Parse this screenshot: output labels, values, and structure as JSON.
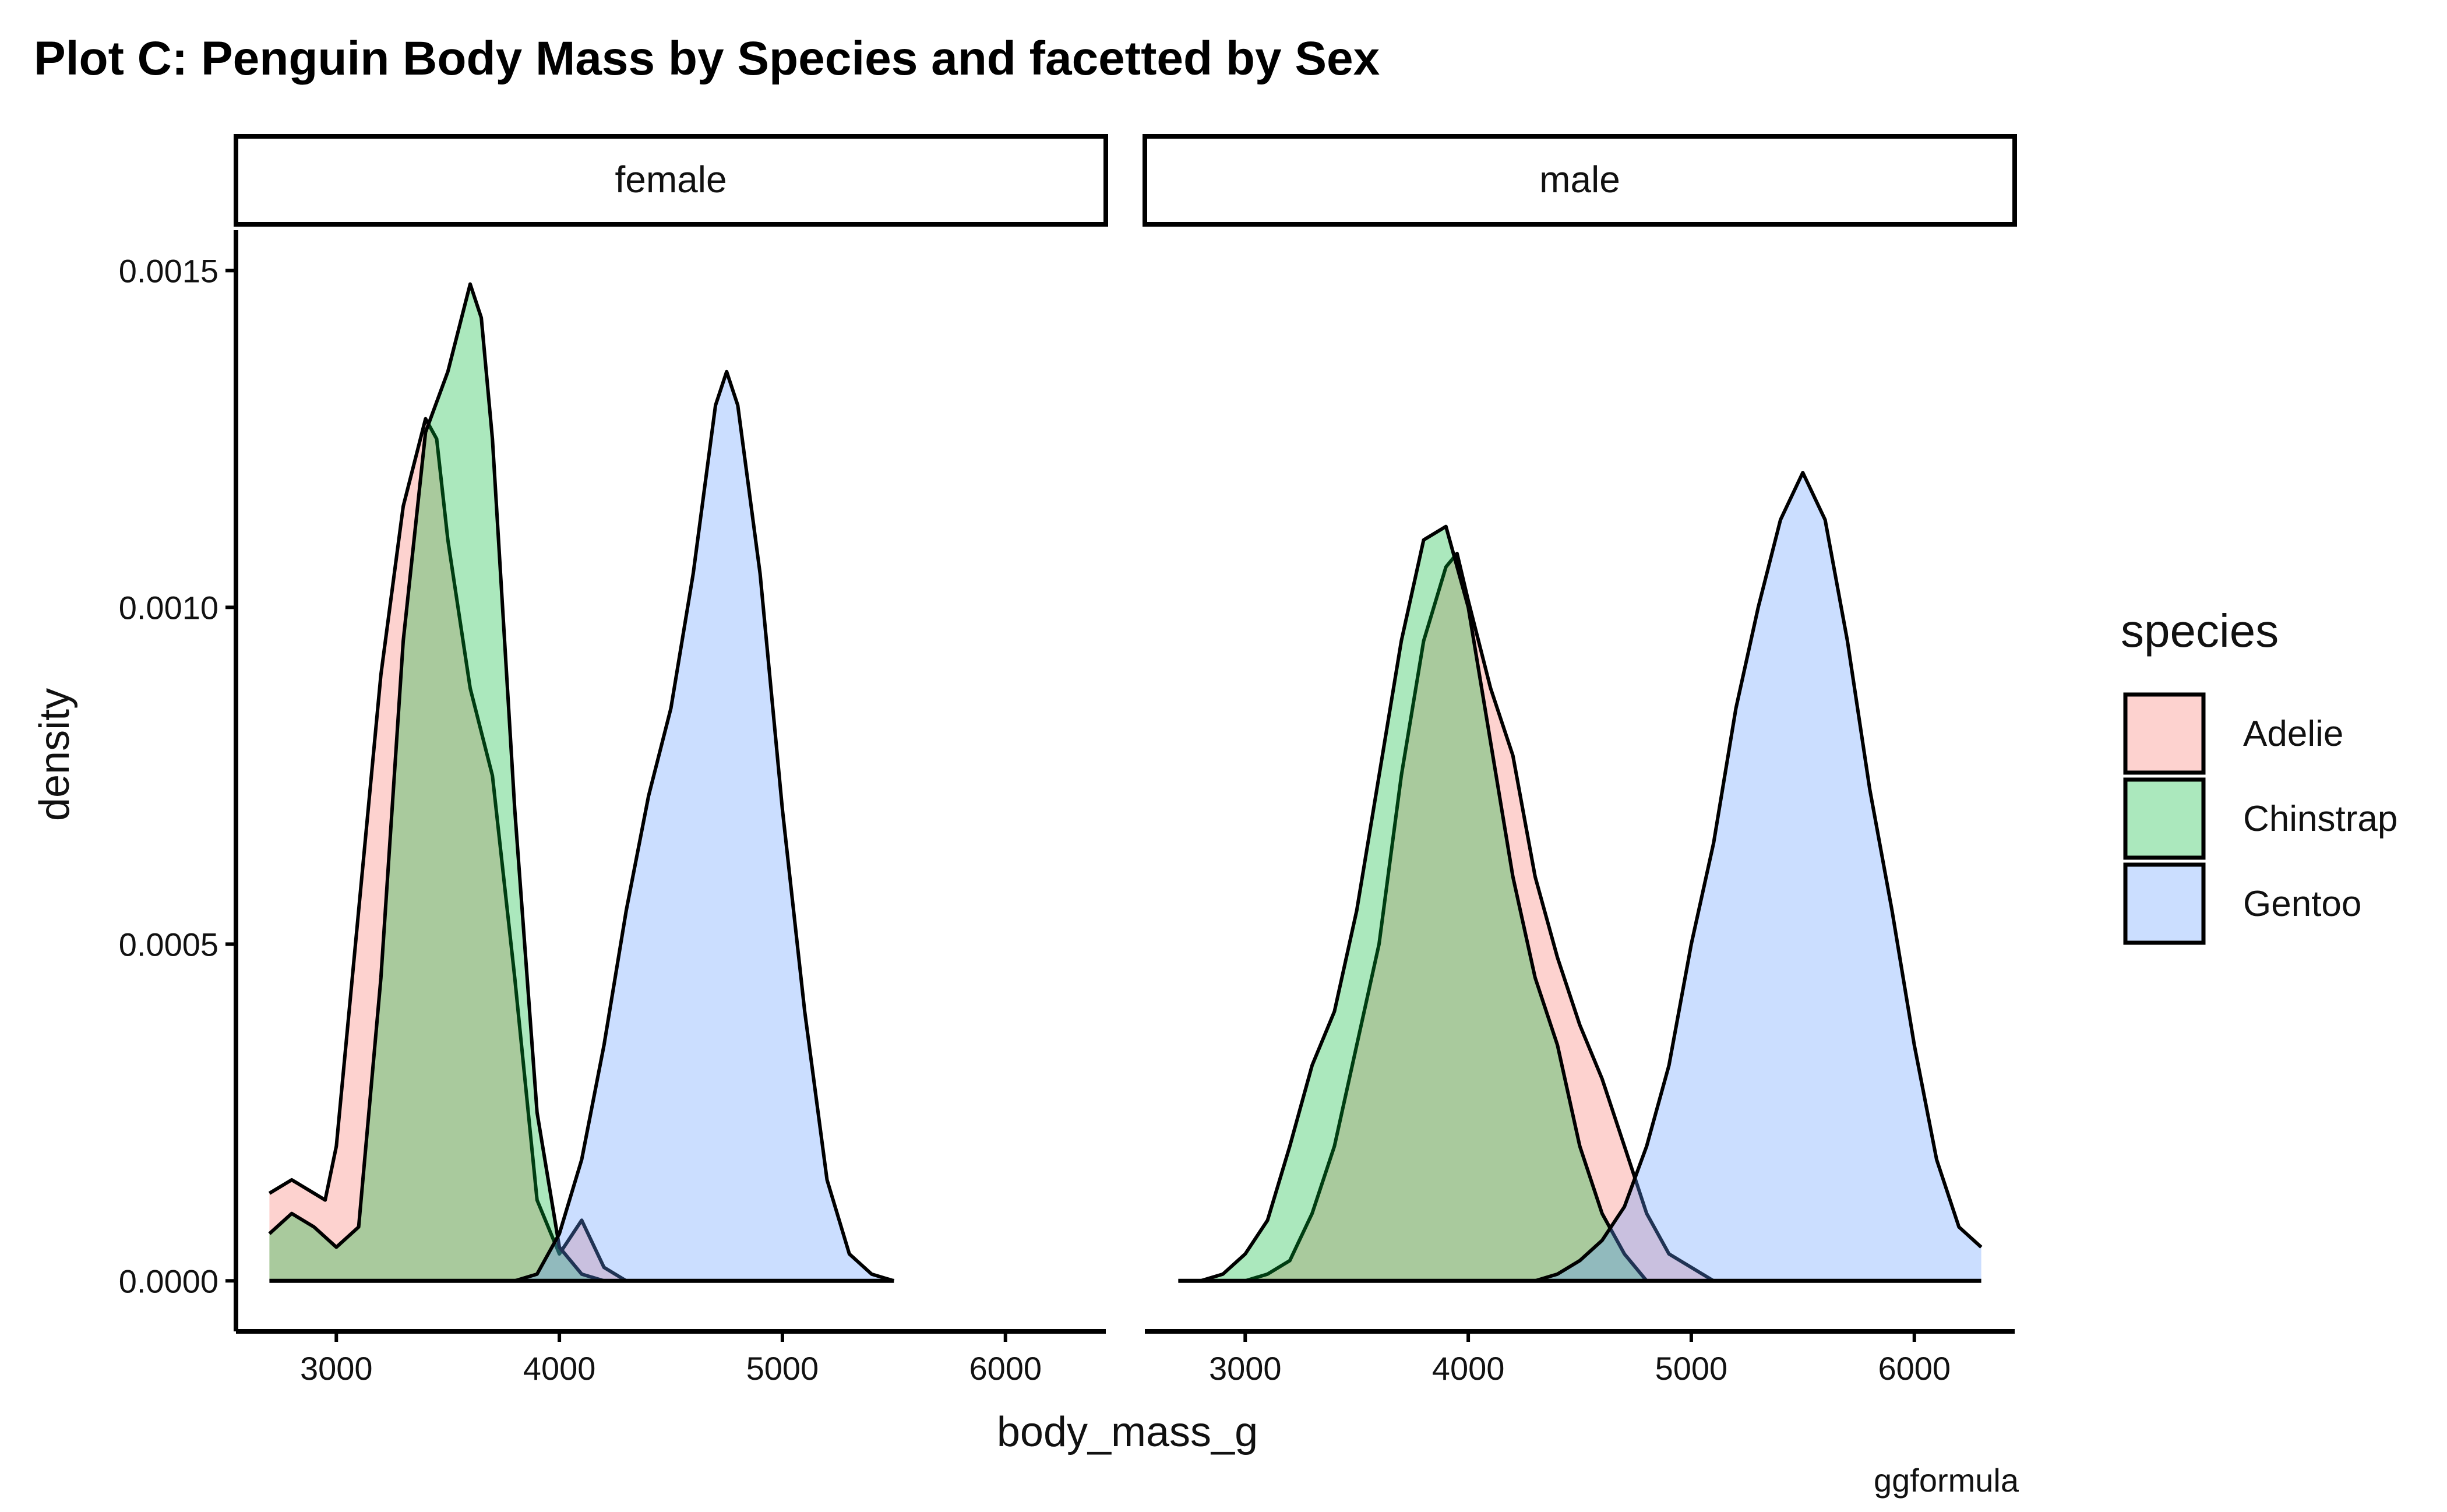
{
  "chart_data": {
    "type": "area",
    "title": "Plot C: Penguin Body Mass by Species and facetted by Sex",
    "xlabel": "body_mass_g",
    "ylabel": "density",
    "caption": "ggformula",
    "x_ticks": [
      3000,
      4000,
      5000,
      6000
    ],
    "y_ticks": [
      "0.0000",
      "0.0005",
      "0.0010",
      "0.0015"
    ],
    "xlim": [
      2550,
      6450
    ],
    "ylim": [
      -7.5e-05,
      0.00156
    ],
    "legend": {
      "title": "species",
      "position": "right",
      "items": [
        {
          "name": "Adelie",
          "color": "#F8766D"
        },
        {
          "name": "Chinstrap",
          "color": "#00BA38"
        },
        {
          "name": "Gentoo",
          "color": "#619CFF"
        }
      ]
    },
    "panels": [
      {
        "label": "female",
        "series": [
          {
            "name": "Adelie",
            "points": [
              [
                2700,
                0.00013
              ],
              [
                2800,
                0.00015
              ],
              [
                2900,
                0.00013
              ],
              [
                2950,
                0.00012
              ],
              [
                3000,
                0.0002
              ],
              [
                3100,
                0.00055
              ],
              [
                3200,
                0.0009
              ],
              [
                3300,
                0.00115
              ],
              [
                3400,
                0.00128
              ],
              [
                3450,
                0.00125
              ],
              [
                3500,
                0.0011
              ],
              [
                3600,
                0.00088
              ],
              [
                3700,
                0.00075
              ],
              [
                3800,
                0.00045
              ],
              [
                3900,
                0.00012
              ],
              [
                4000,
                4e-05
              ],
              [
                4100,
                9e-05
              ],
              [
                4200,
                2e-05
              ],
              [
                4300,
                0.0
              ]
            ]
          },
          {
            "name": "Chinstrap",
            "points": [
              [
                2700,
                7e-05
              ],
              [
                2800,
                0.0001
              ],
              [
                2900,
                8e-05
              ],
              [
                3000,
                5e-05
              ],
              [
                3100,
                8e-05
              ],
              [
                3200,
                0.00045
              ],
              [
                3300,
                0.00095
              ],
              [
                3400,
                0.00126
              ],
              [
                3500,
                0.00135
              ],
              [
                3600,
                0.00148
              ],
              [
                3650,
                0.00143
              ],
              [
                3700,
                0.00125
              ],
              [
                3800,
                0.0007
              ],
              [
                3900,
                0.00025
              ],
              [
                4000,
                5e-05
              ],
              [
                4100,
                1e-05
              ],
              [
                4200,
                0.0
              ]
            ]
          },
          {
            "name": "Gentoo",
            "points": [
              [
                3800,
                0.0
              ],
              [
                3900,
                1e-05
              ],
              [
                4000,
                7e-05
              ],
              [
                4100,
                0.00018
              ],
              [
                4200,
                0.00035
              ],
              [
                4300,
                0.00055
              ],
              [
                4400,
                0.00072
              ],
              [
                4500,
                0.00085
              ],
              [
                4600,
                0.00105
              ],
              [
                4700,
                0.0013
              ],
              [
                4750,
                0.00135
              ],
              [
                4800,
                0.0013
              ],
              [
                4900,
                0.00105
              ],
              [
                5000,
                0.0007
              ],
              [
                5100,
                0.0004
              ],
              [
                5200,
                0.00015
              ],
              [
                5300,
                4e-05
              ],
              [
                5400,
                1e-05
              ],
              [
                5500,
                0.0
              ]
            ]
          }
        ]
      },
      {
        "label": "male",
        "series": [
          {
            "name": "Adelie",
            "points": [
              [
                3000,
                0.0
              ],
              [
                3100,
                1e-05
              ],
              [
                3200,
                3e-05
              ],
              [
                3300,
                0.0001
              ],
              [
                3400,
                0.0002
              ],
              [
                3500,
                0.00035
              ],
              [
                3600,
                0.0005
              ],
              [
                3700,
                0.00075
              ],
              [
                3800,
                0.00095
              ],
              [
                3900,
                0.00106
              ],
              [
                3950,
                0.00108
              ],
              [
                4000,
                0.00101
              ],
              [
                4100,
                0.00088
              ],
              [
                4200,
                0.00078
              ],
              [
                4300,
                0.0006
              ],
              [
                4400,
                0.00048
              ],
              [
                4500,
                0.00038
              ],
              [
                4600,
                0.0003
              ],
              [
                4700,
                0.0002
              ],
              [
                4800,
                0.0001
              ],
              [
                4900,
                4e-05
              ],
              [
                5000,
                2e-05
              ],
              [
                5100,
                0.0
              ]
            ]
          },
          {
            "name": "Chinstrap",
            "points": [
              [
                2700,
                0.0
              ],
              [
                2800,
                0.0
              ],
              [
                2900,
                1e-05
              ],
              [
                3000,
                4e-05
              ],
              [
                3100,
                9e-05
              ],
              [
                3200,
                0.0002
              ],
              [
                3300,
                0.00032
              ],
              [
                3400,
                0.0004
              ],
              [
                3500,
                0.00055
              ],
              [
                3600,
                0.00075
              ],
              [
                3700,
                0.00095
              ],
              [
                3800,
                0.0011
              ],
              [
                3900,
                0.00112
              ],
              [
                4000,
                0.001
              ],
              [
                4100,
                0.0008
              ],
              [
                4200,
                0.0006
              ],
              [
                4300,
                0.00045
              ],
              [
                4400,
                0.00035
              ],
              [
                4500,
                0.0002
              ],
              [
                4600,
                0.0001
              ],
              [
                4700,
                4e-05
              ],
              [
                4800,
                0.0
              ]
            ]
          },
          {
            "name": "Gentoo",
            "points": [
              [
                4300,
                0.0
              ],
              [
                4400,
                1e-05
              ],
              [
                4500,
                3e-05
              ],
              [
                4600,
                6e-05
              ],
              [
                4700,
                0.00011
              ],
              [
                4800,
                0.0002
              ],
              [
                4900,
                0.00032
              ],
              [
                5000,
                0.0005
              ],
              [
                5100,
                0.00065
              ],
              [
                5200,
                0.00085
              ],
              [
                5300,
                0.001
              ],
              [
                5400,
                0.00113
              ],
              [
                5500,
                0.0012
              ],
              [
                5600,
                0.00113
              ],
              [
                5700,
                0.00095
              ],
              [
                5800,
                0.00073
              ],
              [
                5900,
                0.00055
              ],
              [
                6000,
                0.00035
              ],
              [
                6100,
                0.00018
              ],
              [
                6200,
                8e-05
              ],
              [
                6300,
                5e-05
              ]
            ]
          }
        ]
      }
    ]
  }
}
